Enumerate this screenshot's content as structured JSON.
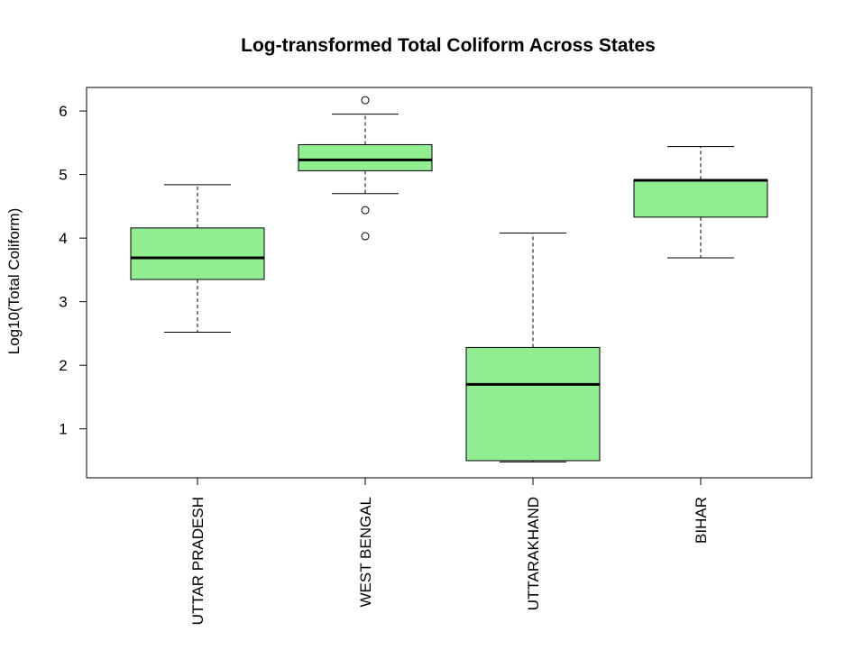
{
  "chart_data": {
    "type": "boxplot",
    "title": "Log-transformed Total Coliform Across States",
    "xlabel": "",
    "ylabel": "Log10(Total Coliform)",
    "ylim": [
      0.23,
      6.37
    ],
    "yticks": [
      1,
      2,
      3,
      4,
      5,
      6
    ],
    "grid": false,
    "legend": "none",
    "box_color": "#90EE90",
    "categories": [
      "UTTAR PRADESH",
      "WEST BENGAL",
      "UTTARAKHAND",
      "BIHAR"
    ],
    "boxes": [
      {
        "min": 2.52,
        "q1": 3.35,
        "median": 3.69,
        "q3": 4.16,
        "max": 4.84,
        "outliers": []
      },
      {
        "min": 4.7,
        "q1": 5.06,
        "median": 5.23,
        "q3": 5.47,
        "max": 5.95,
        "outliers": [
          6.17,
          4.44,
          4.03
        ]
      },
      {
        "min": 0.48,
        "q1": 0.5,
        "median": 1.7,
        "q3": 2.28,
        "max": 4.08,
        "outliers": []
      },
      {
        "min": 3.69,
        "q1": 4.33,
        "median": 4.91,
        "q3": 4.92,
        "max": 5.44,
        "outliers": []
      }
    ]
  }
}
